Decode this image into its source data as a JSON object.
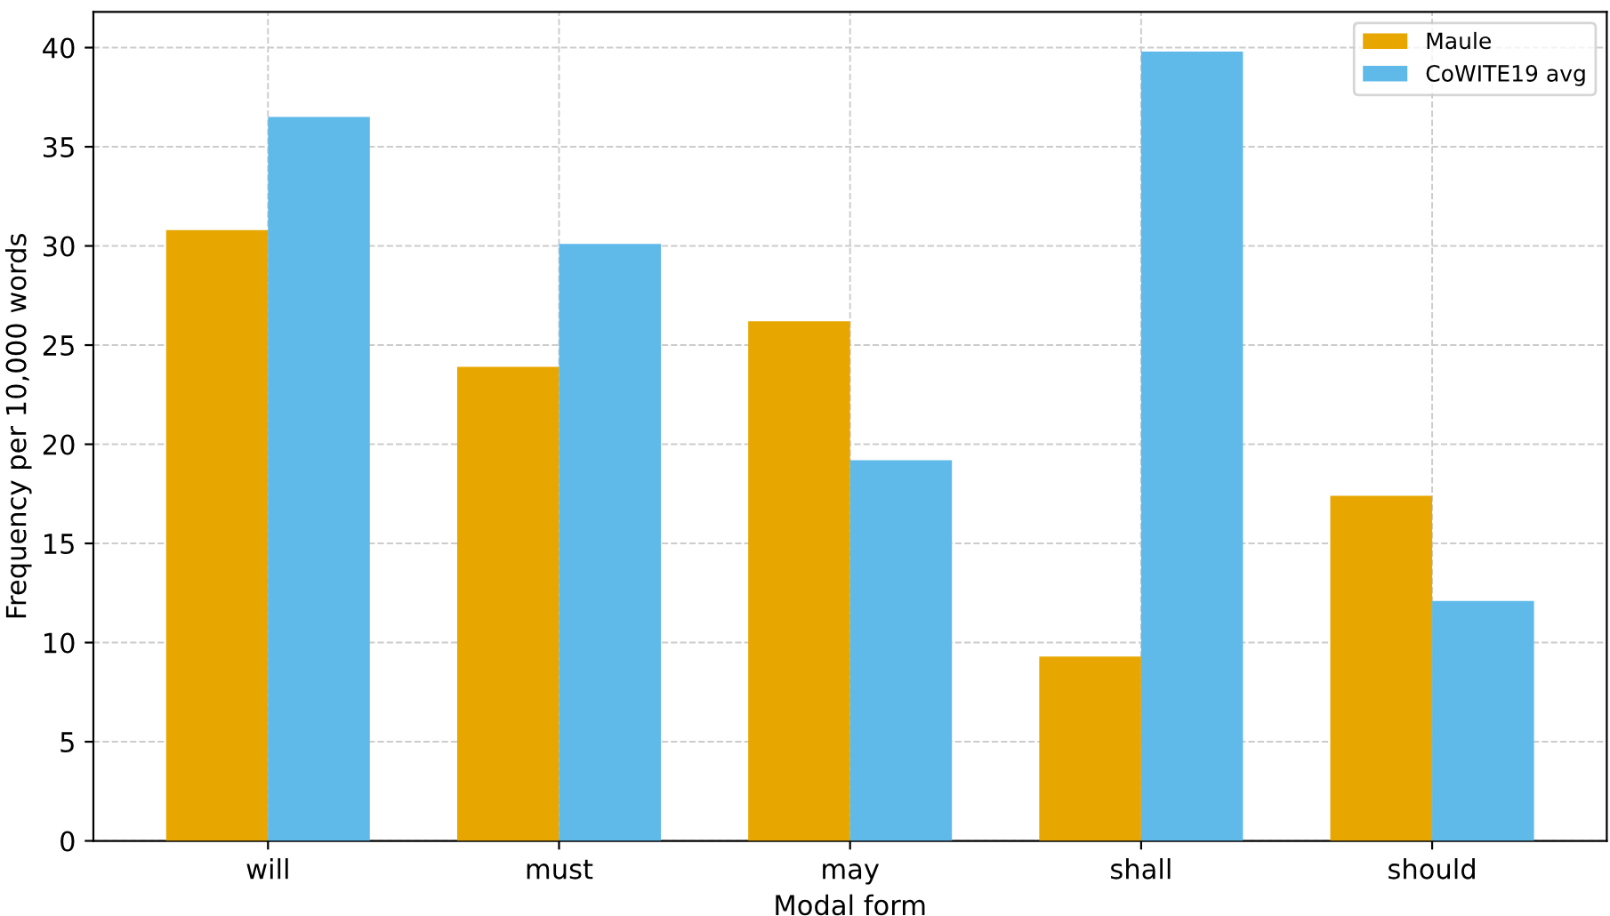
{
  "chart_data": {
    "type": "bar",
    "xlabel": "Modal form",
    "ylabel": "Frequency per 10,000 words",
    "categories": [
      "will",
      "must",
      "may",
      "shall",
      "should"
    ],
    "series": [
      {
        "name": "Maule",
        "color": "#e8a600",
        "values": [
          30.8,
          23.9,
          26.2,
          9.3,
          17.4
        ]
      },
      {
        "name": "CoWITE19 avg",
        "color": "#5fbaea",
        "values": [
          36.5,
          30.1,
          19.2,
          39.8,
          12.1
        ]
      }
    ],
    "ylim": [
      0,
      41.8
    ],
    "yticks": [
      0,
      5,
      10,
      15,
      20,
      25,
      30,
      35,
      40
    ],
    "grid": true,
    "legend": "top right"
  }
}
